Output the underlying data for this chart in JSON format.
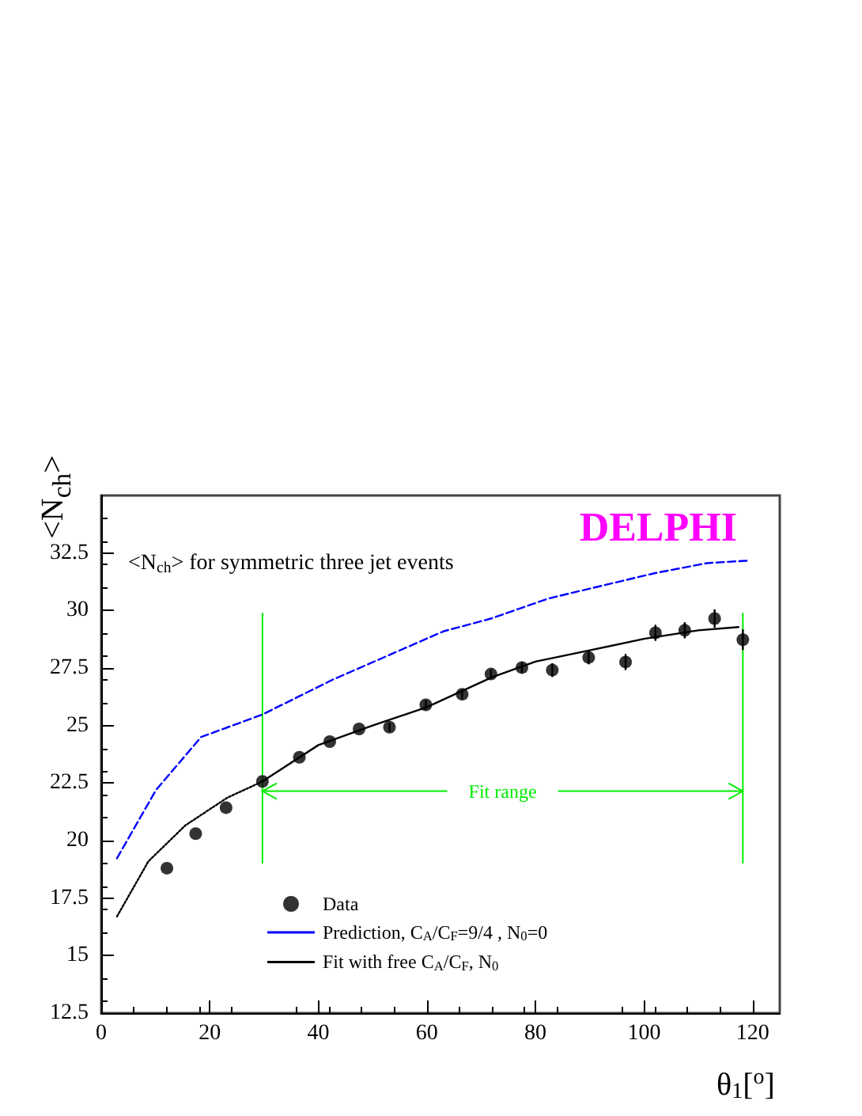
{
  "chart_data": {
    "type": "line",
    "title": "DELPHI",
    "xlabel": "θ$_{1}$[$^{o}$]",
    "ylabel": "<N$_{ch}$>",
    "annotations": [
      "<N$_{ch}$> for symmetric three jet events",
      {
        "text": "Fit range",
        "x": 29.7,
        "y": 22.15
      }
    ],
    "xlim": [
      0,
      125
    ],
    "ylim": [
      12.5,
      35
    ],
    "xticks": [
      0,
      20,
      40,
      60,
      80,
      100,
      120
    ],
    "yticks": [
      12.5,
      15,
      17.5,
      20,
      22.5,
      25,
      27.5,
      30,
      32.5
    ],
    "grid": false,
    "legend": "bottom left",
    "ref_lines": [
      {
        "axis": "x",
        "value": 29.7,
        "label": null,
        "color": "#00ee00"
      },
      {
        "axis": "x",
        "value": 118.2,
        "label": null,
        "color": "#00ee00"
      }
    ],
    "series": [
      {
        "name": "Data",
        "type": "scatter",
        "color": "#000000",
        "marker": "circle",
        "x": [
          12.1,
          17.4,
          23.0,
          29.7,
          36.5,
          42.1,
          47.5,
          53.1,
          59.8,
          66.5,
          71.8,
          77.5,
          83.1,
          89.8,
          96.6,
          102.1,
          107.5,
          113.0,
          118.2
        ],
        "values": [
          18.8,
          20.3,
          21.43,
          22.57,
          23.62,
          24.3,
          24.85,
          24.93,
          25.9,
          26.36,
          27.24,
          27.52,
          27.41,
          27.96,
          27.76,
          29.03,
          29.14,
          29.65,
          28.73
        ],
        "errors": [
          null,
          null,
          null,
          null,
          null,
          null,
          null,
          0.2,
          0.2,
          0.2,
          0.2,
          0.25,
          0.3,
          0.3,
          0.35,
          0.35,
          0.35,
          0.4,
          0.45
        ]
      },
      {
        "name": "Prediction, C$_{A}$/C$_{F}$=9/4 , N$_{0}$=0",
        "color": "#0000ff",
        "marker": "none",
        "line_style": "dashed",
        "x": [
          2.9,
          10.1,
          18.4,
          29.7,
          42.7,
          63.1,
          71.8,
          82.5,
          101.9,
          111.6,
          119.4
        ],
        "values": [
          19.23,
          22.2,
          24.5,
          25.48,
          27.0,
          29.1,
          29.65,
          30.53,
          31.62,
          32.06,
          32.17
        ]
      },
      {
        "name": "Fit with free C$_{A}$/C$_{F}$, N$_{0}$",
        "color": "#000000",
        "marker": "none",
        "line_style": "solid",
        "x": [
          29.7,
          40,
          50,
          60,
          72,
          80,
          90,
          100,
          110,
          117.4
        ],
        "values": [
          22.57,
          24.15,
          25.0,
          25.8,
          27.1,
          27.78,
          28.27,
          28.77,
          29.14,
          29.28
        ]
      },
      {
        "color": "#000000",
        "marker": "none",
        "line_style": "dotted",
        "x": [
          2.9,
          8.7,
          15.5,
          23.2,
          29.7
        ],
        "values": [
          16.7,
          19.1,
          20.66,
          21.86,
          22.57
        ]
      }
    ]
  }
}
